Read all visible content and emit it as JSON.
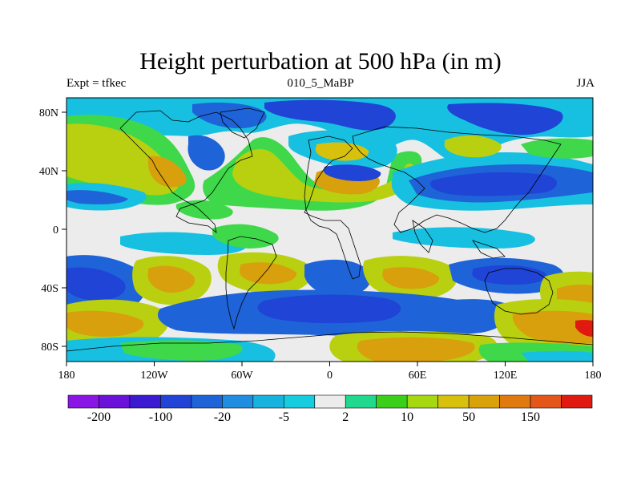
{
  "title": "Height perturbation at 500 hPa (in m)",
  "subtitle_left": "Expt = tfkec",
  "subtitle_center": "010_5_MaBP",
  "subtitle_right": "JJA",
  "map": {
    "x_ticks": [
      "180",
      "120W",
      "60W",
      "0",
      "60E",
      "120E",
      "180"
    ],
    "y_ticks": [
      "80N",
      "40N",
      "0",
      "40S",
      "80S"
    ]
  },
  "colorbar": {
    "colors": [
      "#8a16e6",
      "#6a12d9",
      "#3c1ad2",
      "#2244d6",
      "#1f63d9",
      "#1f8ee0",
      "#17b3de",
      "#16cde0",
      "#ececec",
      "#20d88e",
      "#3ccf1a",
      "#a6d810",
      "#d8c10c",
      "#d9a20b",
      "#e17a0e",
      "#e5561a",
      "#e01a10"
    ],
    "labels": [
      "-200",
      "-100",
      "-20",
      "-5",
      "2",
      "10",
      "50",
      "150"
    ]
  },
  "colors": {
    "neg_strong": "#1f44d6",
    "neg_mid": "#1f8ee0",
    "neg_weak": "#17c0e0",
    "near_zero": "#ececec",
    "pos_weak": "#3fd84a",
    "pos_mid": "#b8d010",
    "pos_strong": "#d8a00c"
  }
}
